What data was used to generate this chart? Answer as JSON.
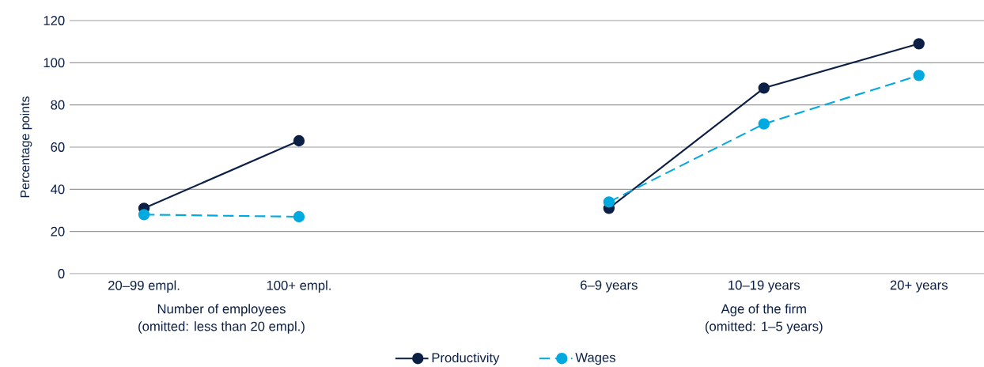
{
  "chart_data": {
    "type": "line",
    "ylabel": "Percentage points",
    "categories": [
      "20–99 empl.",
      "100+ empl.",
      null,
      "6–9 years",
      "10–19 years",
      "20+ years"
    ],
    "series": [
      {
        "name": "Productivity",
        "color": "#0c2045",
        "line_style": "solid",
        "values": [
          31,
          63,
          null,
          31,
          88,
          109
        ]
      },
      {
        "name": "Wages",
        "color": "#00a9e0",
        "line_style": "dashed",
        "values": [
          28,
          27,
          null,
          34,
          71,
          94
        ]
      }
    ],
    "ylim": [
      0,
      120
    ],
    "yticks": [
      0,
      20,
      40,
      60,
      80,
      100,
      120
    ],
    "grid": "y",
    "legend": "bottom",
    "marker": "circle",
    "annotations": [
      "Number of employees",
      "(omitted: less than 20 empl.)",
      "Age of the firm",
      "(omitted: 1–5 years)"
    ]
  }
}
